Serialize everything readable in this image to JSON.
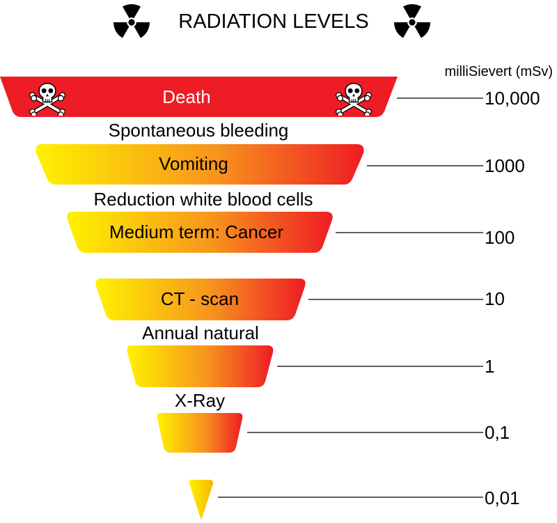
{
  "title": "RADIATION LEVELS",
  "unit_label": "milliSievert (mSv)",
  "icons": {
    "header": "radiation-trefoil-icon",
    "death_marker": "skull-crossbones-icon"
  },
  "colors": {
    "gradient_start": "#FFF200",
    "gradient_end": "#EE1C25",
    "death_red": "#EE1C25",
    "text": "#000000",
    "symbol": "#000000"
  },
  "levels": [
    {
      "band_label": "Death",
      "band_label_color": "#FFFFFF",
      "value_label": "10,000"
    },
    {
      "band_label": "Vomiting",
      "band_label_color": "#000000",
      "value_label": "1000"
    },
    {
      "band_label": "Medium term: Cancer",
      "band_label_color": "#000000",
      "value_label": "100"
    },
    {
      "band_label": "CT - scan",
      "band_label_color": "#000000",
      "value_label": "10"
    },
    {
      "band_label": "",
      "band_label_color": "#000000",
      "value_label": "1"
    },
    {
      "band_label": "",
      "band_label_color": "#000000",
      "value_label": "0,1"
    },
    {
      "band_label": "",
      "band_label_color": "#000000",
      "value_label": "0,01"
    }
  ],
  "between_labels": [
    "Spontaneous bleeding",
    "Reduction white blood cells",
    "Annual natural",
    "X-Ray"
  ]
}
